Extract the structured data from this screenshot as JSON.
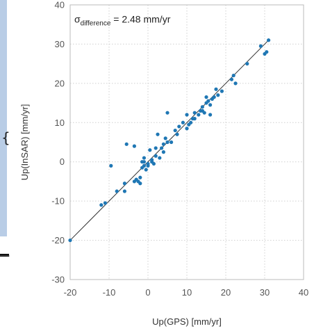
{
  "chart_data": {
    "type": "scatter",
    "xlabel": "Up(GPS)  [mm/yr]",
    "ylabel": "Up(InSAR)  [mm/yr]",
    "xlim": [
      -20,
      40
    ],
    "ylim": [
      -30,
      40
    ],
    "xticks": [
      -20,
      -10,
      0,
      10,
      20,
      30,
      40
    ],
    "yticks": [
      -30,
      -20,
      -10,
      0,
      10,
      20,
      30,
      40
    ],
    "grid": true,
    "annotation": {
      "symbol": "σ",
      "subscript": "difference",
      "text": " = 2.48 mm/yr"
    },
    "marker_color": "#1f77b4",
    "fit_line": {
      "x": [
        -20,
        31
      ],
      "y": [
        -20,
        31
      ]
    },
    "points": [
      [
        -20,
        -20
      ],
      [
        -12,
        -11
      ],
      [
        -11,
        -10.5
      ],
      [
        -9.5,
        -1
      ],
      [
        -8,
        -7.5
      ],
      [
        -6,
        -5.5
      ],
      [
        -6,
        -7.5
      ],
      [
        -5.5,
        4.5
      ],
      [
        -3.5,
        4
      ],
      [
        -3.5,
        -5
      ],
      [
        -3,
        -4.5
      ],
      [
        -2.5,
        -5
      ],
      [
        -2,
        -4
      ],
      [
        -2,
        -5.5
      ],
      [
        -1.5,
        -1.5
      ],
      [
        -1.5,
        0
      ],
      [
        -1,
        -1
      ],
      [
        -1,
        1
      ],
      [
        -1,
        0
      ],
      [
        -0.5,
        -2
      ],
      [
        0,
        -0.5
      ],
      [
        0,
        -1
      ],
      [
        0.5,
        3
      ],
      [
        1,
        0
      ],
      [
        1,
        0.5
      ],
      [
        1.5,
        -0.5
      ],
      [
        2,
        1.5
      ],
      [
        2,
        3.5
      ],
      [
        2.5,
        7
      ],
      [
        3,
        1
      ],
      [
        3.5,
        3.5
      ],
      [
        4,
        2.5
      ],
      [
        4,
        4.5
      ],
      [
        4.5,
        6
      ],
      [
        5,
        5
      ],
      [
        5,
        12.5
      ],
      [
        6,
        5
      ],
      [
        7,
        8
      ],
      [
        7.5,
        7
      ],
      [
        8,
        9
      ],
      [
        9,
        10
      ],
      [
        10,
        12
      ],
      [
        10,
        8.5
      ],
      [
        10.5,
        9.5
      ],
      [
        11,
        10
      ],
      [
        11.5,
        11
      ],
      [
        12,
        12.5
      ],
      [
        12,
        11
      ],
      [
        13,
        12
      ],
      [
        13.5,
        13
      ],
      [
        14,
        14
      ],
      [
        14,
        13
      ],
      [
        14.5,
        12.5
      ],
      [
        15,
        16.5
      ],
      [
        15,
        15
      ],
      [
        15.5,
        15.5
      ],
      [
        16,
        14.5
      ],
      [
        16,
        12
      ],
      [
        16.5,
        16
      ],
      [
        17,
        16.5
      ],
      [
        17.5,
        18.5
      ],
      [
        18,
        17
      ],
      [
        19,
        18
      ],
      [
        21.5,
        21
      ],
      [
        22,
        22
      ],
      [
        22.5,
        20
      ],
      [
        25.5,
        25
      ],
      [
        29,
        29.5
      ],
      [
        30,
        27.5
      ],
      [
        30.5,
        28
      ],
      [
        31,
        31
      ]
    ]
  }
}
